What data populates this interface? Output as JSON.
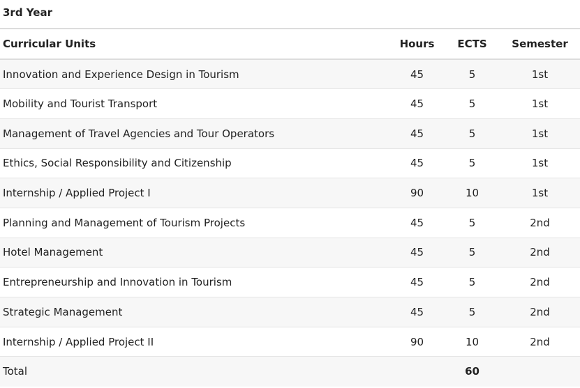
{
  "title": "3rd Year",
  "headers": {
    "unit": "Curricular Units",
    "hours": "Hours",
    "ects": "ECTS",
    "semester": "Semester"
  },
  "rows": [
    {
      "unit": "Innovation and Experience Design in Tourism",
      "hours": "45",
      "ects": "5",
      "semester": "1st"
    },
    {
      "unit": "Mobility and Tourist Transport",
      "hours": "45",
      "ects": "5",
      "semester": "1st"
    },
    {
      "unit": "Management of Travel Agencies and Tour Operators",
      "hours": "45",
      "ects": "5",
      "semester": "1st"
    },
    {
      "unit": "Ethics, Social Responsibility and Citizenship",
      "hours": "45",
      "ects": "5",
      "semester": "1st"
    },
    {
      "unit": "Internship / Applied Project I",
      "hours": "90",
      "ects": "10",
      "semester": "1st"
    },
    {
      "unit": "Planning and Management of Tourism Projects",
      "hours": "45",
      "ects": "5",
      "semester": "2nd"
    },
    {
      "unit": "Hotel Management",
      "hours": "45",
      "ects": "5",
      "semester": "2nd"
    },
    {
      "unit": "Entrepreneurship and Innovation in Tourism",
      "hours": "45",
      "ects": "5",
      "semester": "2nd"
    },
    {
      "unit": "Strategic Management",
      "hours": "45",
      "ects": "5",
      "semester": "2nd"
    },
    {
      "unit": "Internship / Applied Project II",
      "hours": "90",
      "ects": "10",
      "semester": "2nd"
    }
  ],
  "total": {
    "label": "Total",
    "ects": "60"
  }
}
